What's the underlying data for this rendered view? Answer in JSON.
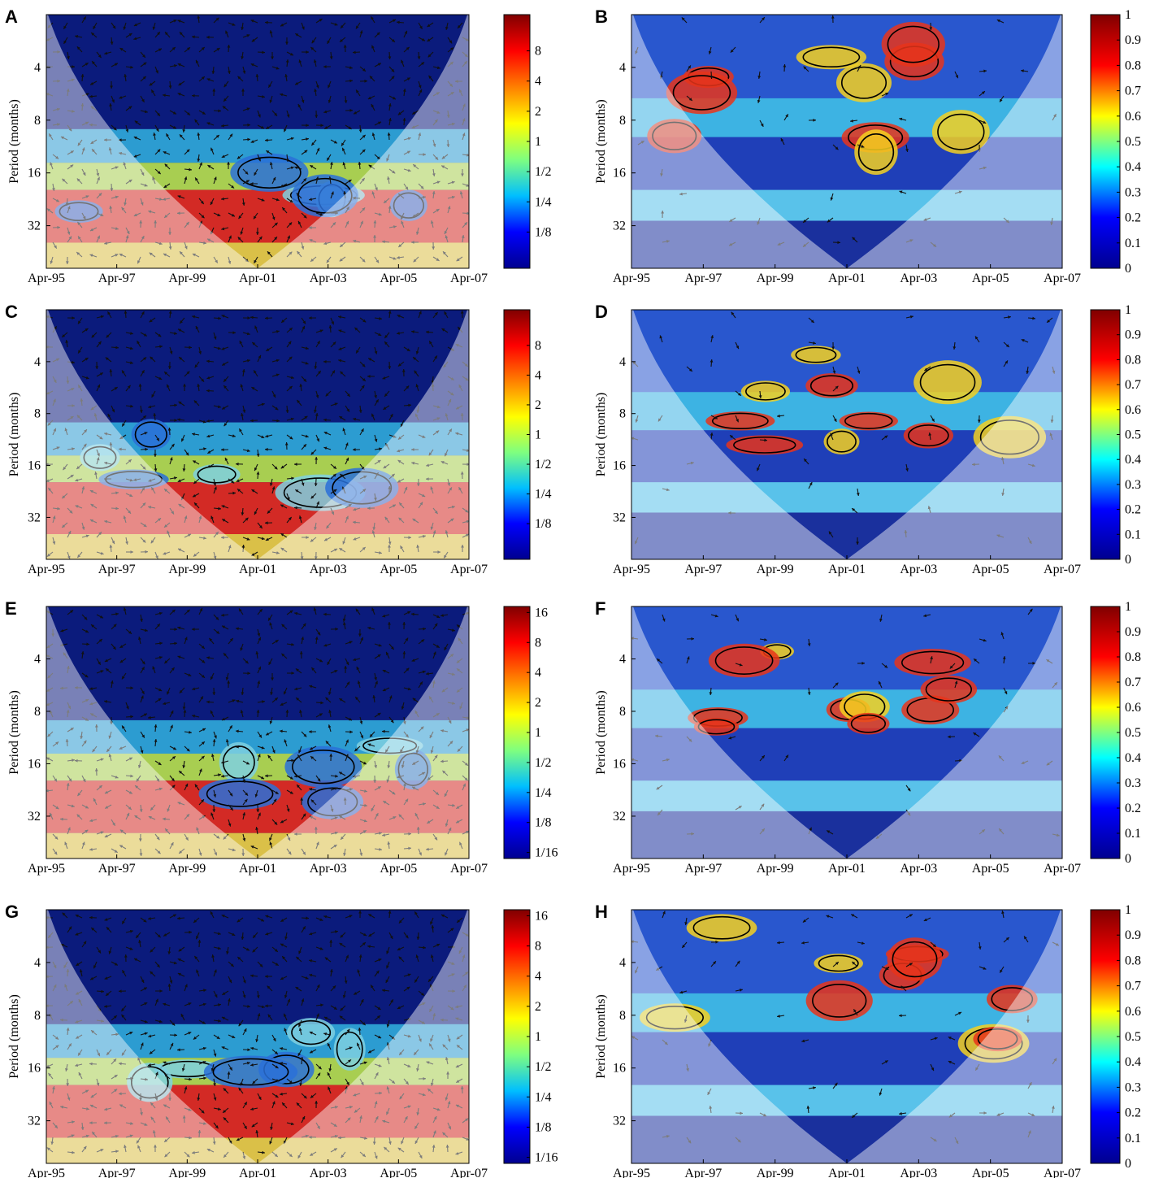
{
  "figure": {
    "x_tick_labels": [
      "Apr-95",
      "Apr-97",
      "Apr-99",
      "Apr-01",
      "Apr-03",
      "Apr-05",
      "Apr-07"
    ],
    "ylabel": "Period (months)",
    "y_tick_labels": [
      "4",
      "8",
      "16",
      "32"
    ]
  },
  "chart_data": [
    {
      "panel": "A",
      "type": "heatmap",
      "plot": "wavelet-power",
      "x": [
        "Apr-95",
        "Apr-97",
        "Apr-99",
        "Apr-01",
        "Apr-03",
        "Apr-05",
        "Apr-07"
      ],
      "y_ticks": [
        4,
        8,
        16,
        32
      ],
      "ylabel": "Period (months)",
      "y_scale": "log2",
      "colorbar_ticks": [
        "8",
        "4",
        "2",
        "1",
        "1/2",
        "1/4",
        "1/8"
      ],
      "colorbar_range": [
        "1/16",
        "16"
      ],
      "cone_of_influence": true,
      "phase_arrows": true
    },
    {
      "panel": "B",
      "type": "heatmap",
      "plot": "wavelet-coherence",
      "x": [
        "Apr-95",
        "Apr-97",
        "Apr-99",
        "Apr-01",
        "Apr-03",
        "Apr-05",
        "Apr-07"
      ],
      "y_ticks": [
        4,
        8,
        16,
        32
      ],
      "ylabel": "Period (months)",
      "y_scale": "log2",
      "colorbar_ticks": [
        "1",
        "0.9",
        "0.8",
        "0.7",
        "0.6",
        "0.5",
        "0.4",
        "0.3",
        "0.2",
        "0.1",
        "0"
      ],
      "colorbar_range": [
        0,
        1
      ],
      "cone_of_influence": true,
      "phase_arrows": true
    },
    {
      "panel": "C",
      "type": "heatmap",
      "plot": "wavelet-power",
      "x": [
        "Apr-95",
        "Apr-97",
        "Apr-99",
        "Apr-01",
        "Apr-03",
        "Apr-05",
        "Apr-07"
      ],
      "y_ticks": [
        4,
        8,
        16,
        32
      ],
      "ylabel": "Period (months)",
      "y_scale": "log2",
      "colorbar_ticks": [
        "8",
        "4",
        "2",
        "1",
        "1/2",
        "1/4",
        "1/8"
      ],
      "colorbar_range": [
        "1/16",
        "16"
      ],
      "cone_of_influence": true,
      "phase_arrows": true
    },
    {
      "panel": "D",
      "type": "heatmap",
      "plot": "wavelet-coherence",
      "x": [
        "Apr-95",
        "Apr-97",
        "Apr-99",
        "Apr-01",
        "Apr-03",
        "Apr-05",
        "Apr-07"
      ],
      "y_ticks": [
        4,
        8,
        16,
        32
      ],
      "ylabel": "Period (months)",
      "y_scale": "log2",
      "colorbar_ticks": [
        "1",
        "0.9",
        "0.8",
        "0.7",
        "0.6",
        "0.5",
        "0.4",
        "0.3",
        "0.2",
        "0.1",
        "0"
      ],
      "colorbar_range": [
        0,
        1
      ],
      "cone_of_influence": true,
      "phase_arrows": true
    },
    {
      "panel": "E",
      "type": "heatmap",
      "plot": "wavelet-power",
      "x": [
        "Apr-95",
        "Apr-97",
        "Apr-99",
        "Apr-01",
        "Apr-03",
        "Apr-05",
        "Apr-07"
      ],
      "y_ticks": [
        4,
        8,
        16,
        32
      ],
      "ylabel": "Period (months)",
      "y_scale": "log2",
      "colorbar_ticks": [
        "16",
        "8",
        "4",
        "2",
        "1",
        "1/2",
        "1/4",
        "1/8",
        "1/16"
      ],
      "colorbar_range": [
        "1/16",
        "16"
      ],
      "cone_of_influence": true,
      "phase_arrows": true
    },
    {
      "panel": "F",
      "type": "heatmap",
      "plot": "wavelet-coherence",
      "x": [
        "Apr-95",
        "Apr-97",
        "Apr-99",
        "Apr-01",
        "Apr-03",
        "Apr-05",
        "Apr-07"
      ],
      "y_ticks": [
        4,
        8,
        16,
        32
      ],
      "ylabel": "Period (months)",
      "y_scale": "log2",
      "colorbar_ticks": [
        "1",
        "0.9",
        "0.8",
        "0.7",
        "0.6",
        "0.5",
        "0.4",
        "0.3",
        "0.2",
        "0.1",
        "0"
      ],
      "colorbar_range": [
        0,
        1
      ],
      "cone_of_influence": true,
      "phase_arrows": true
    },
    {
      "panel": "G",
      "type": "heatmap",
      "plot": "wavelet-power",
      "x": [
        "Apr-95",
        "Apr-97",
        "Apr-99",
        "Apr-01",
        "Apr-03",
        "Apr-05",
        "Apr-07"
      ],
      "y_ticks": [
        4,
        8,
        16,
        32
      ],
      "ylabel": "Period (months)",
      "y_scale": "log2",
      "colorbar_ticks": [
        "16",
        "8",
        "4",
        "2",
        "1",
        "1/2",
        "1/4",
        "1/8",
        "1/16"
      ],
      "colorbar_range": [
        "1/16",
        "16"
      ],
      "cone_of_influence": true,
      "phase_arrows": true
    },
    {
      "panel": "H",
      "type": "heatmap",
      "plot": "wavelet-coherence",
      "x": [
        "Apr-95",
        "Apr-97",
        "Apr-99",
        "Apr-01",
        "Apr-03",
        "Apr-05",
        "Apr-07"
      ],
      "y_ticks": [
        4,
        8,
        16,
        32
      ],
      "ylabel": "Period (months)",
      "y_scale": "log2",
      "colorbar_ticks": [
        "1",
        "0.9",
        "0.8",
        "0.7",
        "0.6",
        "0.5",
        "0.4",
        "0.3",
        "0.2",
        "0.1",
        "0"
      ],
      "colorbar_range": [
        0,
        1
      ],
      "cone_of_influence": true,
      "phase_arrows": true
    }
  ],
  "colormap": [
    "#00008f",
    "#0000ff",
    "#00ffff",
    "#ffff00",
    "#ff0000",
    "#800000"
  ]
}
